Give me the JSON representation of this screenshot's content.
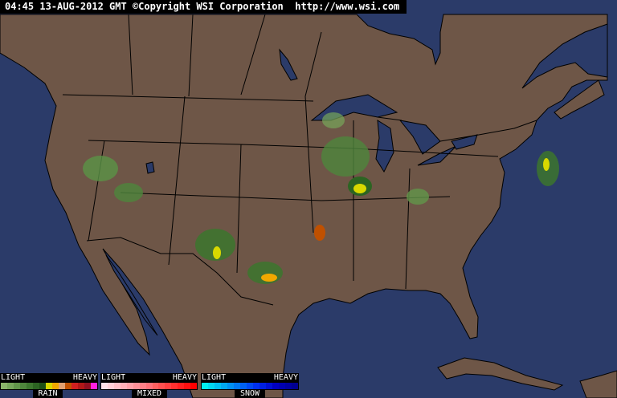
{
  "header": {
    "text": "04:45 13-AUG-2012 GMT ©Copyright WSI Corporation  http://www.wsi.com"
  },
  "colors": {
    "ocean": "#2b3b69",
    "land": "#6e5647",
    "border": "#000000"
  },
  "legend": {
    "rain": {
      "light": "LIGHT",
      "heavy": "HEAVY",
      "label": "RAIN",
      "colors": [
        "#8ab46a",
        "#76a65a",
        "#62964a",
        "#4e863c",
        "#3c762e",
        "#2c6422",
        "#1e5016",
        "#d8d800",
        "#f0a800",
        "#e0a070",
        "#c05000",
        "#d02020",
        "#b01818",
        "#901020",
        "#ff20e0"
      ]
    },
    "mixed": {
      "light": "LIGHT",
      "heavy": "HEAVY",
      "label": "MIXED",
      "colors": [
        "#ffe0e8",
        "#ffd0d8",
        "#ffc0c8",
        "#ffb0b8",
        "#ffa0a8",
        "#ff9098",
        "#ff8088",
        "#ff7078",
        "#ff6060",
        "#ff5050",
        "#ff4040",
        "#ff3030",
        "#ff2020",
        "#ff1010",
        "#ff0000"
      ]
    },
    "snow": {
      "light": "LIGHT",
      "heavy": "HEAVY",
      "label": "SNOW",
      "colors": [
        "#00f0f0",
        "#00d8f0",
        "#00c0f0",
        "#00a8f0",
        "#0090f0",
        "#0078f0",
        "#0060f0",
        "#0048f0",
        "#0030f0",
        "#0020e0",
        "#0010d0",
        "#0000c0",
        "#0000b0",
        "#0000a0",
        "#000090"
      ]
    }
  }
}
